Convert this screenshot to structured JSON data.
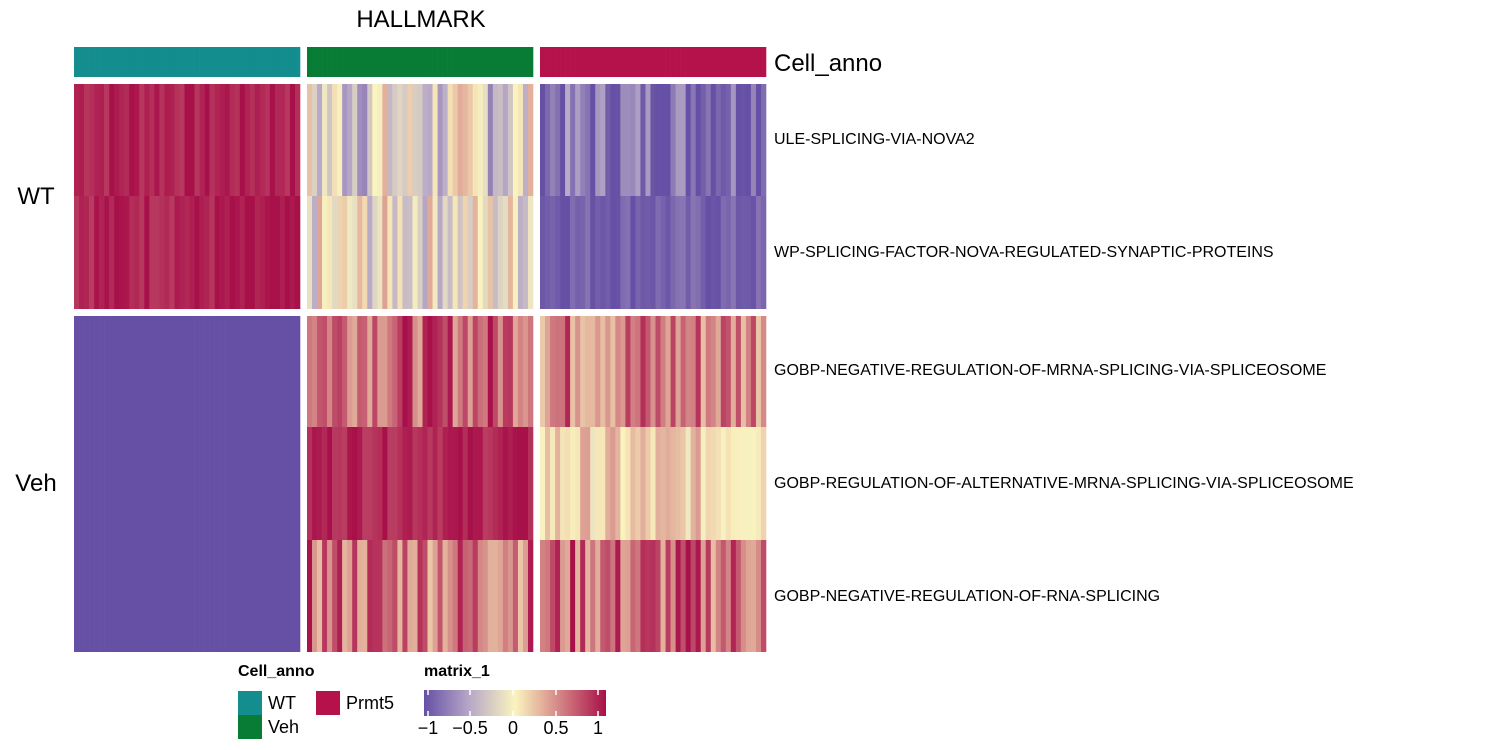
{
  "title": "HALLMARK",
  "annotation_name": "Cell_anno",
  "row_labels": [
    "ULE-SPLICING-VIA-NOVA2",
    "WP-SPLICING-FACTOR-NOVA-REGULATED-SYNAPTIC-PROTEINS",
    "GOBP-NEGATIVE-REGULATION-OF-MRNA-SPLICING-VIA-SPLICEOSOME",
    "GOBP-REGULATION-OF-ALTERNATIVE-MRNA-SPLICING-VIA-SPLICEOSOME",
    "GOBP-NEGATIVE-REGULATION-OF-RNA-SPLICING"
  ],
  "row_splits": [
    "WT",
    "Veh"
  ],
  "legend": {
    "cell_anno_title": "Cell_anno",
    "cell_anno_items": [
      {
        "label": "WT",
        "color": "#138d8d"
      },
      {
        "label": "Veh",
        "color": "#087b35"
      },
      {
        "label": "Prmt5",
        "color": "#b5114a"
      }
    ],
    "matrix_title": "matrix_1",
    "matrix_ticks": [
      "−1",
      "−0.5",
      "0",
      "0.5",
      "1"
    ]
  },
  "chart_data": {
    "type": "heatmap",
    "title": "HALLMARK",
    "color_scale": {
      "min": -1,
      "max": 1,
      "stops": [
        {
          "value": -1,
          "color": "#6650a5"
        },
        {
          "value": -0.5,
          "color": "#b7a8c7"
        },
        {
          "value": 0,
          "color": "#faf4bf"
        },
        {
          "value": 0.5,
          "color": "#d38384"
        },
        {
          "value": 1,
          "color": "#a8104a"
        }
      ]
    },
    "column_groups": [
      {
        "name": "WT",
        "color": "#138d8d",
        "n_columns": 45
      },
      {
        "name": "Veh",
        "color": "#087b35",
        "n_columns": 45
      },
      {
        "name": "Prmt5",
        "color": "#b5114a",
        "n_columns": 45
      }
    ],
    "row_splits": [
      {
        "name": "WT",
        "rows": [
          0,
          1
        ]
      },
      {
        "name": "Veh",
        "rows": [
          2,
          3,
          4
        ]
      }
    ],
    "rows": [
      {
        "label": "ULE-SPLICING-VIA-NOVA2",
        "group_means": {
          "WT": 0.93,
          "Veh": -0.2,
          "Prmt5": -0.78
        }
      },
      {
        "label": "WP-SPLICING-FACTOR-NOVA-REGULATED-SYNAPTIC-PROTEINS",
        "group_means": {
          "WT": 0.93,
          "Veh": -0.08,
          "Prmt5": -0.9
        }
      },
      {
        "label": "GOBP-NEGATIVE-REGULATION-OF-MRNA-SPLICING-VIA-SPLICEOSOME",
        "group_means": {
          "WT": -1.0,
          "Veh": 0.68,
          "Prmt5": 0.55
        }
      },
      {
        "label": "GOBP-REGULATION-OF-ALTERNATIVE-MRNA-SPLICING-VIA-SPLICEOSOME",
        "group_means": {
          "WT": -1.0,
          "Veh": 0.92,
          "Prmt5": 0.15
        }
      },
      {
        "label": "GOBP-NEGATIVE-REGULATION-OF-RNA-SPLICING",
        "group_means": {
          "WT": -1.0,
          "Veh": 0.6,
          "Prmt5": 0.62
        }
      }
    ]
  }
}
